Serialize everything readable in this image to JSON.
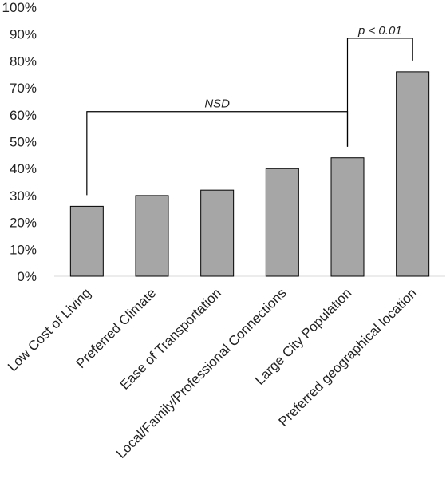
{
  "chart_data": {
    "type": "bar",
    "categories": [
      "Low Cost of Living",
      "Preferred Climate",
      "Ease of Transportation",
      "Local/Family/Professional Connections",
      "Large City Population",
      "Preferred geographical location"
    ],
    "values": [
      26,
      30,
      32,
      40,
      44,
      76
    ],
    "y_tick_labels": [
      "0%",
      "10%",
      "20%",
      "30%",
      "40%",
      "50%",
      "60%",
      "70%",
      "80%",
      "90%",
      "100%"
    ],
    "ylim": [
      0,
      100
    ],
    "y_format": "percent",
    "grid": false,
    "legend": "none",
    "title": "",
    "xlabel": "",
    "ylabel": "",
    "bar_color": "#a6a6a6",
    "bar_edge_color": "#000000",
    "annotations": [
      {
        "text": "NSD",
        "from_category": 0,
        "to_category": 4
      },
      {
        "text": "p < 0.01",
        "from_category": 4,
        "to_category": 5
      }
    ]
  }
}
